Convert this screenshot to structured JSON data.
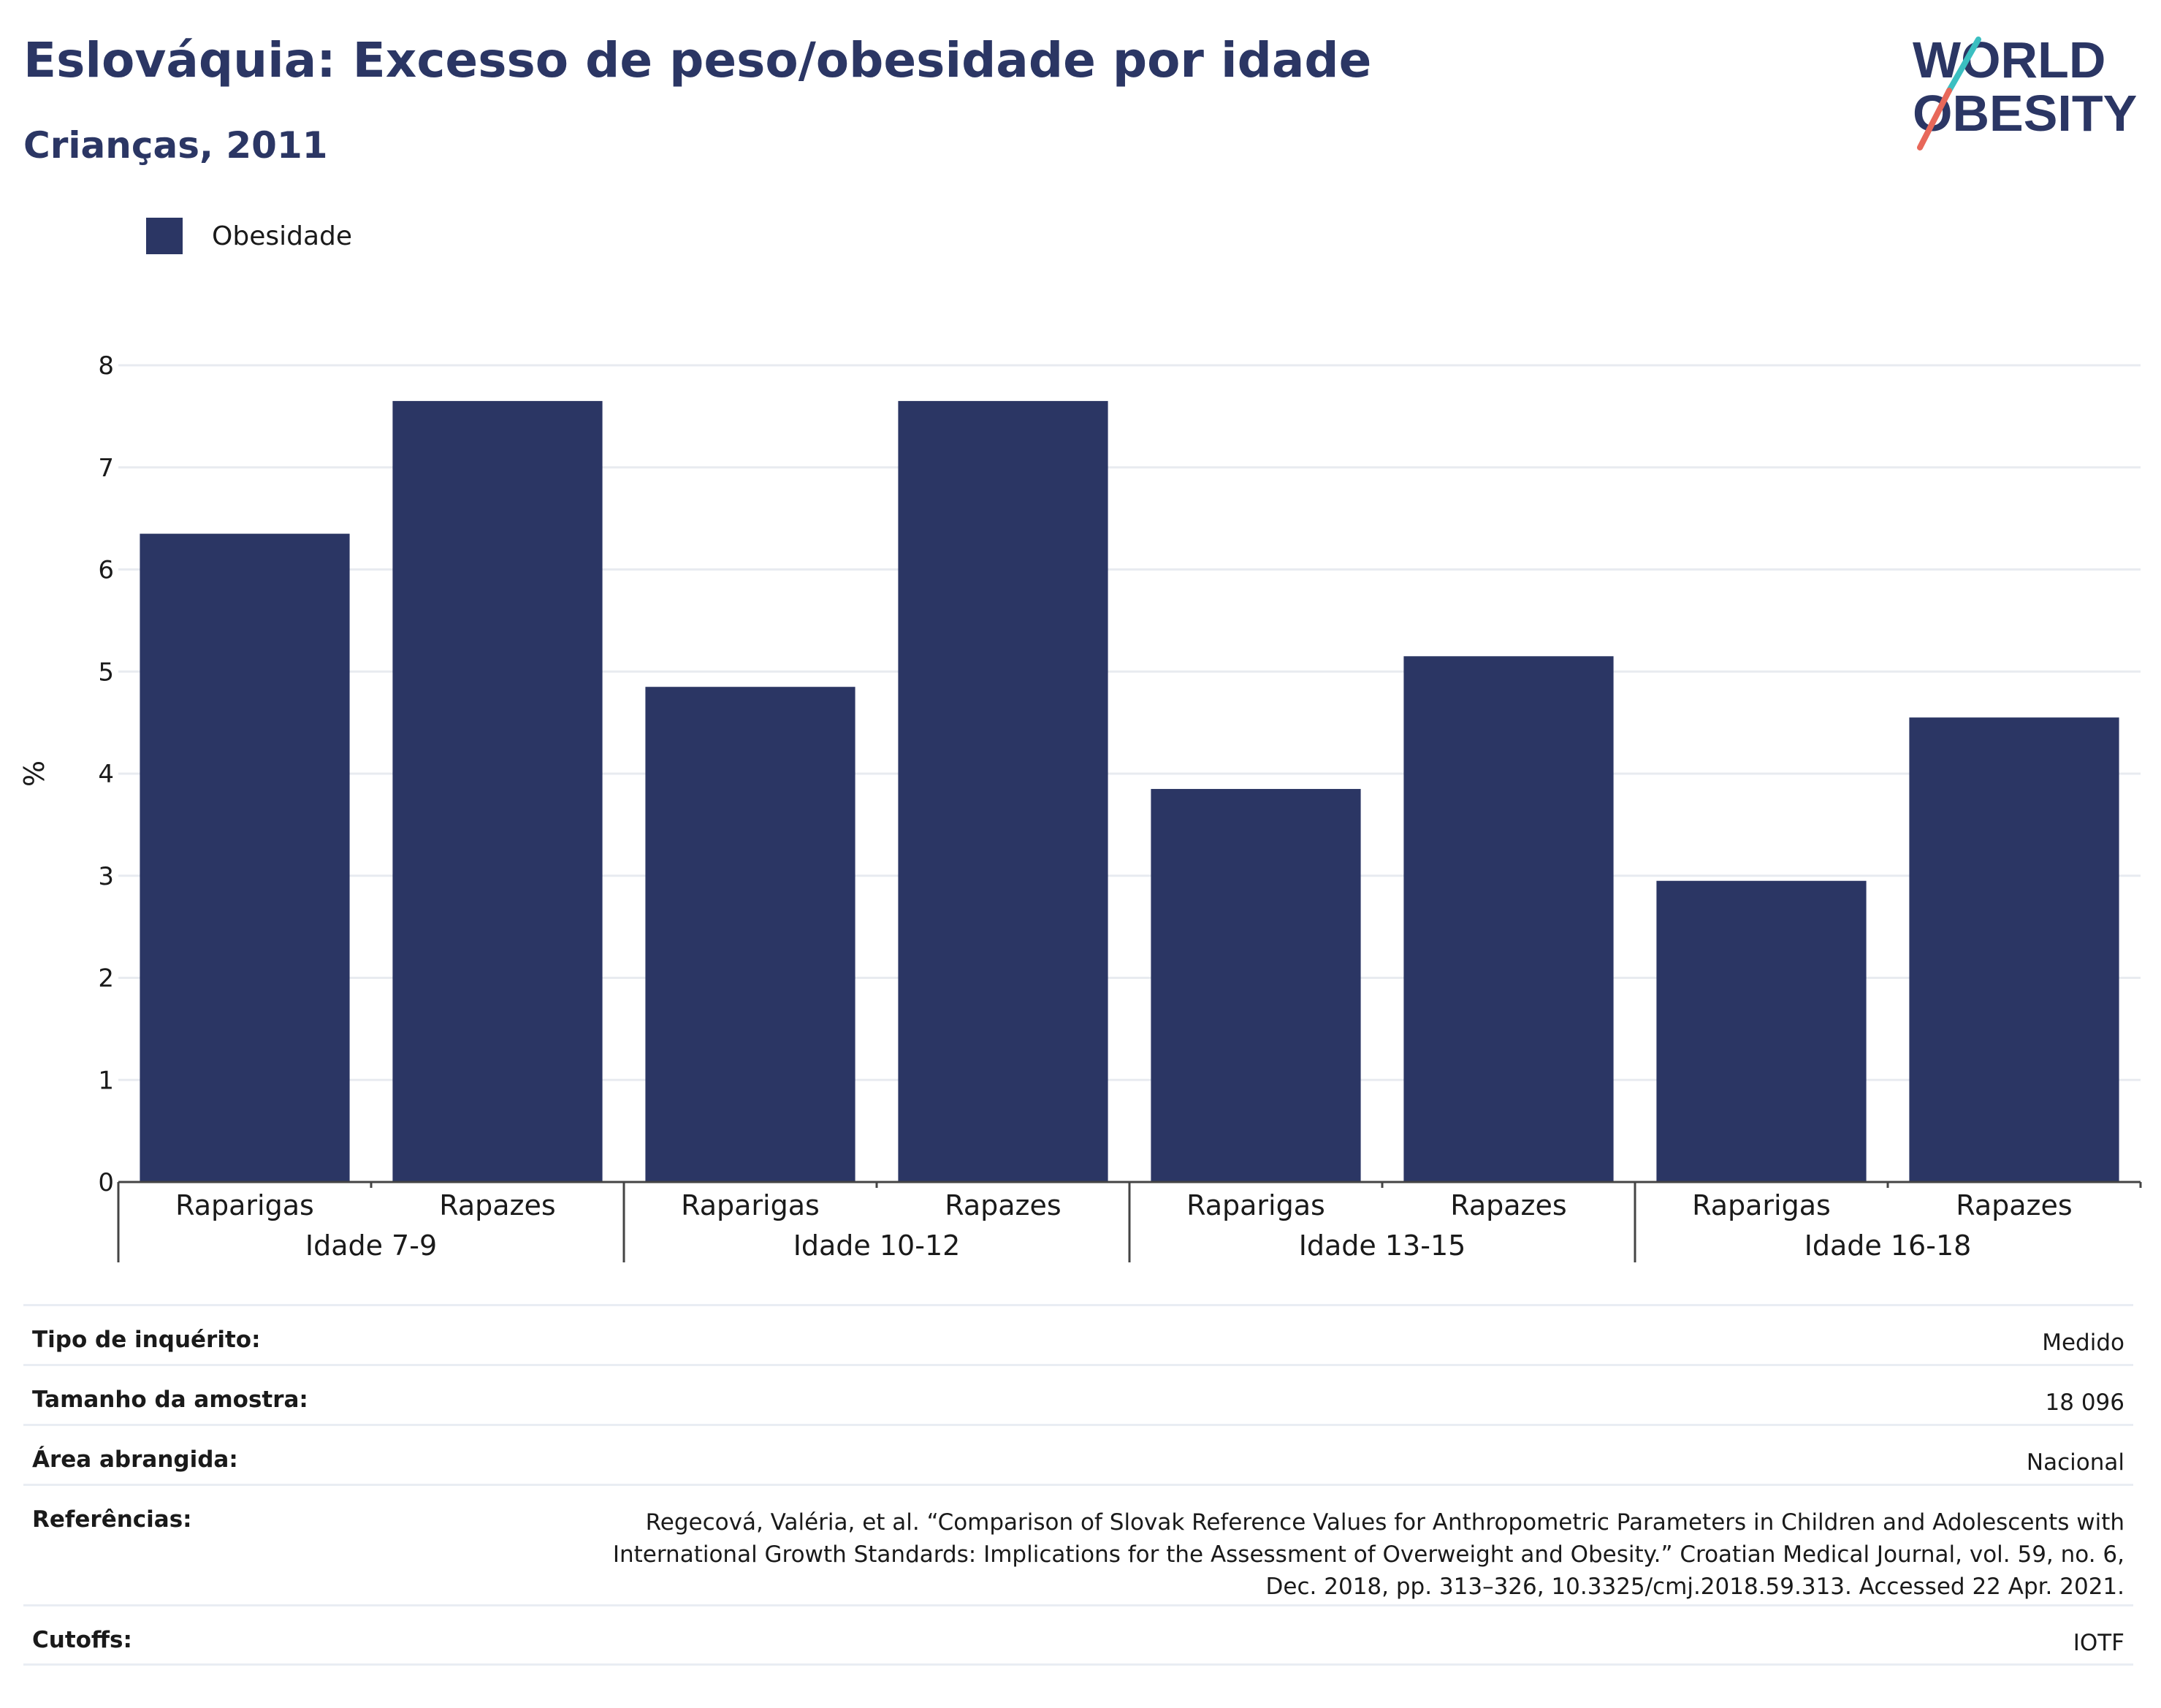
{
  "header": {
    "title": "Eslováquia: Excesso de peso/obesidade por idade",
    "subtitle": "Crianças, 2011"
  },
  "logo": {
    "line1": "WORLD",
    "line2": "OBESITY",
    "colors": {
      "text": "#2b3664",
      "slash_top": "#3bbfc1",
      "slash_bottom": "#e8685a"
    }
  },
  "legend": {
    "items": [
      {
        "label": "Obesidade",
        "color": "#2b3664"
      }
    ]
  },
  "chart_data": {
    "type": "bar",
    "ylabel": "%",
    "ylim": [
      0,
      8
    ],
    "yticks": [
      0,
      1,
      2,
      3,
      4,
      5,
      6,
      7,
      8
    ],
    "grid": true,
    "legend_position": "top-left",
    "bar_color": "#2b3664",
    "groups": [
      {
        "label": "Idade 7-9",
        "categories": [
          "Raparigas",
          "Rapazes"
        ]
      },
      {
        "label": "Idade 10-12",
        "categories": [
          "Raparigas",
          "Rapazes"
        ]
      },
      {
        "label": "Idade 13-15",
        "categories": [
          "Raparigas",
          "Rapazes"
        ]
      },
      {
        "label": "Idade 16-18",
        "categories": [
          "Raparigas",
          "Rapazes"
        ]
      }
    ],
    "series": [
      {
        "name": "Obesidade",
        "values": [
          6.35,
          7.65,
          4.85,
          7.65,
          3.85,
          5.15,
          2.95,
          4.55
        ]
      }
    ]
  },
  "meta": {
    "rows": [
      {
        "label": "Tipo de inquérito:",
        "value_lines": [
          "Medido"
        ]
      },
      {
        "label": "Tamanho da amostra:",
        "value_lines": [
          "18 096"
        ]
      },
      {
        "label": "Área abrangida:",
        "value_lines": [
          "Nacional"
        ]
      },
      {
        "label": "Referências:",
        "value_lines": [
          "Regecová, Valéria, et al. “Comparison of Slovak Reference Values for Anthropometric Parameters in Children and Adolescents with",
          "International Growth Standards: Implications for the Assessment of Overweight and Obesity.” Croatian Medical Journal, vol. 59, no. 6,",
          "Dec. 2018, pp. 313–326, 10.3325/cmj.2018.59.313. Accessed 22 Apr. 2021."
        ]
      },
      {
        "label": "Cutoffs:",
        "value_lines": [
          "IOTF"
        ]
      }
    ]
  }
}
